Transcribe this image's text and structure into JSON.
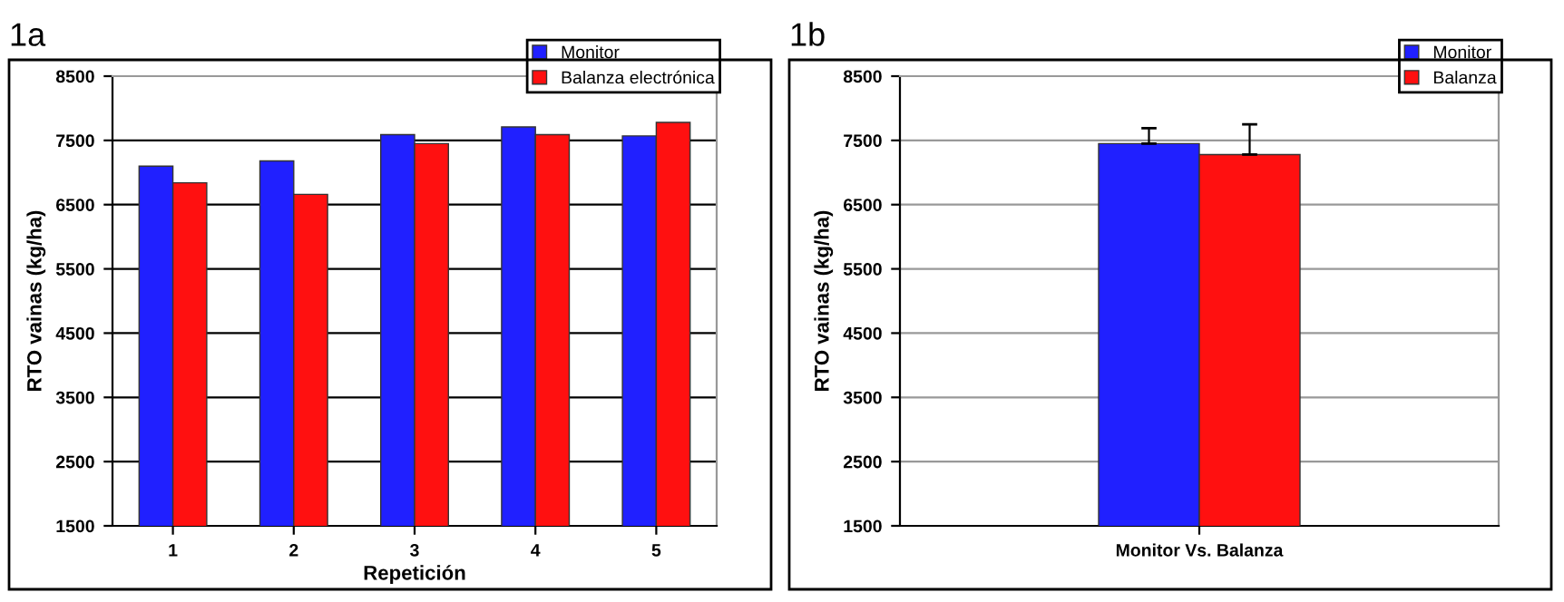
{
  "chart_data": [
    {
      "type": "bar",
      "title": "1a",
      "xlabel": "Repetición",
      "ylabel": "RTO vainas (kg/ha)",
      "categories": [
        "1",
        "2",
        "3",
        "4",
        "5"
      ],
      "series": [
        {
          "name": "Monitor",
          "color": "#2020ff",
          "values": [
            7100,
            7180,
            7590,
            7710,
            7570
          ]
        },
        {
          "name": "Balanza electrónica",
          "color": "#ff1010",
          "values": [
            6840,
            6660,
            7450,
            7590,
            7780
          ]
        }
      ],
      "ylim": [
        1500,
        8500
      ],
      "yticks": [
        1500,
        2500,
        3500,
        4500,
        5500,
        6500,
        7500,
        8500
      ],
      "grid": "y",
      "legend": "top right"
    },
    {
      "type": "bar",
      "title": "1b",
      "ylabel": "RTO vainas (kg/ha)",
      "categories": [
        "Monitor Vs. Balanza"
      ],
      "series": [
        {
          "name": "Monitor",
          "color": "#2020ff",
          "values": [
            7450
          ],
          "errors": [
            [
              7450,
              7690
            ]
          ]
        },
        {
          "name": "Balanza",
          "color": "#ff1010",
          "values": [
            7280
          ],
          "errors": [
            [
              7280,
              7750
            ]
          ]
        }
      ],
      "ylim": [
        1500,
        8500
      ],
      "yticks": [
        1500,
        2500,
        3500,
        4500,
        5500,
        6500,
        7500,
        8500
      ],
      "grid": "y",
      "legend": "top right"
    }
  ]
}
